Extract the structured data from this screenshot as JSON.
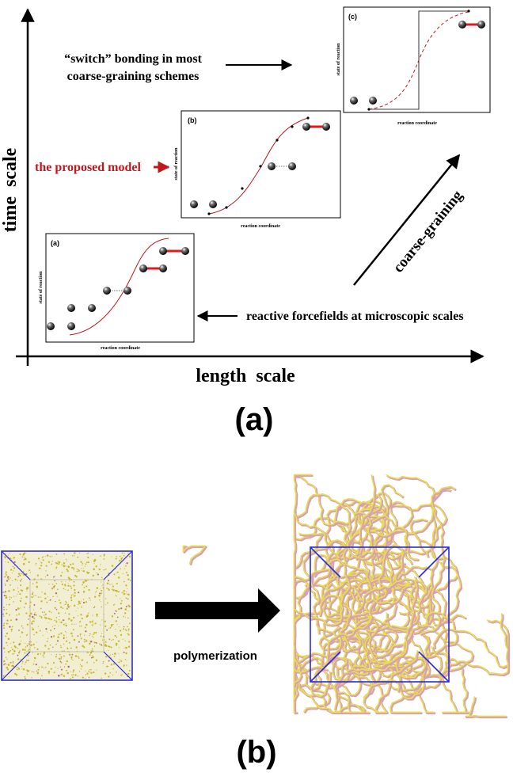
{
  "panel_a": {
    "axis_y_label": "time  scale",
    "axis_x_label": "length  scale",
    "caption": "(a)",
    "switch_text_line1": "“switch” bonding in most",
    "switch_text_line2": "coarse-graining schemes",
    "proposed_model_label": "the proposed model",
    "reactive_text": "reactive forcefields at microscopic scales",
    "coarse_graining_label": "coarse-graining",
    "insets": [
      {
        "tag": "(a)",
        "ylabel": "state of reaction",
        "xlabel": "reaction coordinate"
      },
      {
        "tag": "(b)",
        "ylabel": "state of reaction",
        "xlabel": "reaction coordinate"
      },
      {
        "tag": "(c)",
        "ylabel": "state of reaction",
        "xlabel": "reaction coordinate"
      }
    ]
  },
  "panel_b": {
    "arrow_label": "polymerization",
    "caption": "(b)"
  },
  "colors": {
    "axis": "#000000",
    "accent_red": "#c0191c",
    "box_blue": "#2a2ae0",
    "polymer_yellow": "#e8e04a",
    "polymer_pink": "#d8a0b8"
  }
}
